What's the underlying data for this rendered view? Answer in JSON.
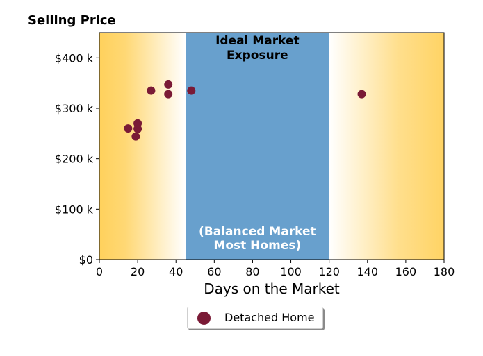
{
  "chart_data": {
    "type": "scatter",
    "title": "Selling Price",
    "xlabel": "Days on the Market",
    "ylabel": "",
    "xlim": [
      0,
      180
    ],
    "ylim": [
      0,
      450000
    ],
    "x_ticks": [
      0,
      20,
      40,
      60,
      80,
      100,
      120,
      140,
      160,
      180
    ],
    "y_ticks": [
      {
        "value": 0,
        "label": "$0"
      },
      {
        "value": 100000,
        "label": "$100 k"
      },
      {
        "value": 200000,
        "label": "$200 k"
      },
      {
        "value": 300000,
        "label": "$300 k"
      },
      {
        "value": 400000,
        "label": "$400 k"
      }
    ],
    "band": {
      "x_start": 45,
      "x_end": 120,
      "color": "#68a0cd",
      "label_top": [
        "Ideal Market",
        "Exposure"
      ],
      "label_bottom": [
        "(Balanced Market",
        "Most Homes)"
      ]
    },
    "gradient_color": "#ffd15c",
    "grid": false,
    "series": [
      {
        "name": "Detached Home",
        "color": "#7a1a36",
        "points": [
          {
            "x": 15,
            "y": 260000
          },
          {
            "x": 19,
            "y": 244000
          },
          {
            "x": 20,
            "y": 270000
          },
          {
            "x": 20,
            "y": 259000
          },
          {
            "x": 27,
            "y": 335000
          },
          {
            "x": 36,
            "y": 347000
          },
          {
            "x": 36,
            "y": 328000
          },
          {
            "x": 48,
            "y": 335000
          },
          {
            "x": 137,
            "y": 328000
          }
        ]
      }
    ],
    "legend_position": "bottom"
  }
}
